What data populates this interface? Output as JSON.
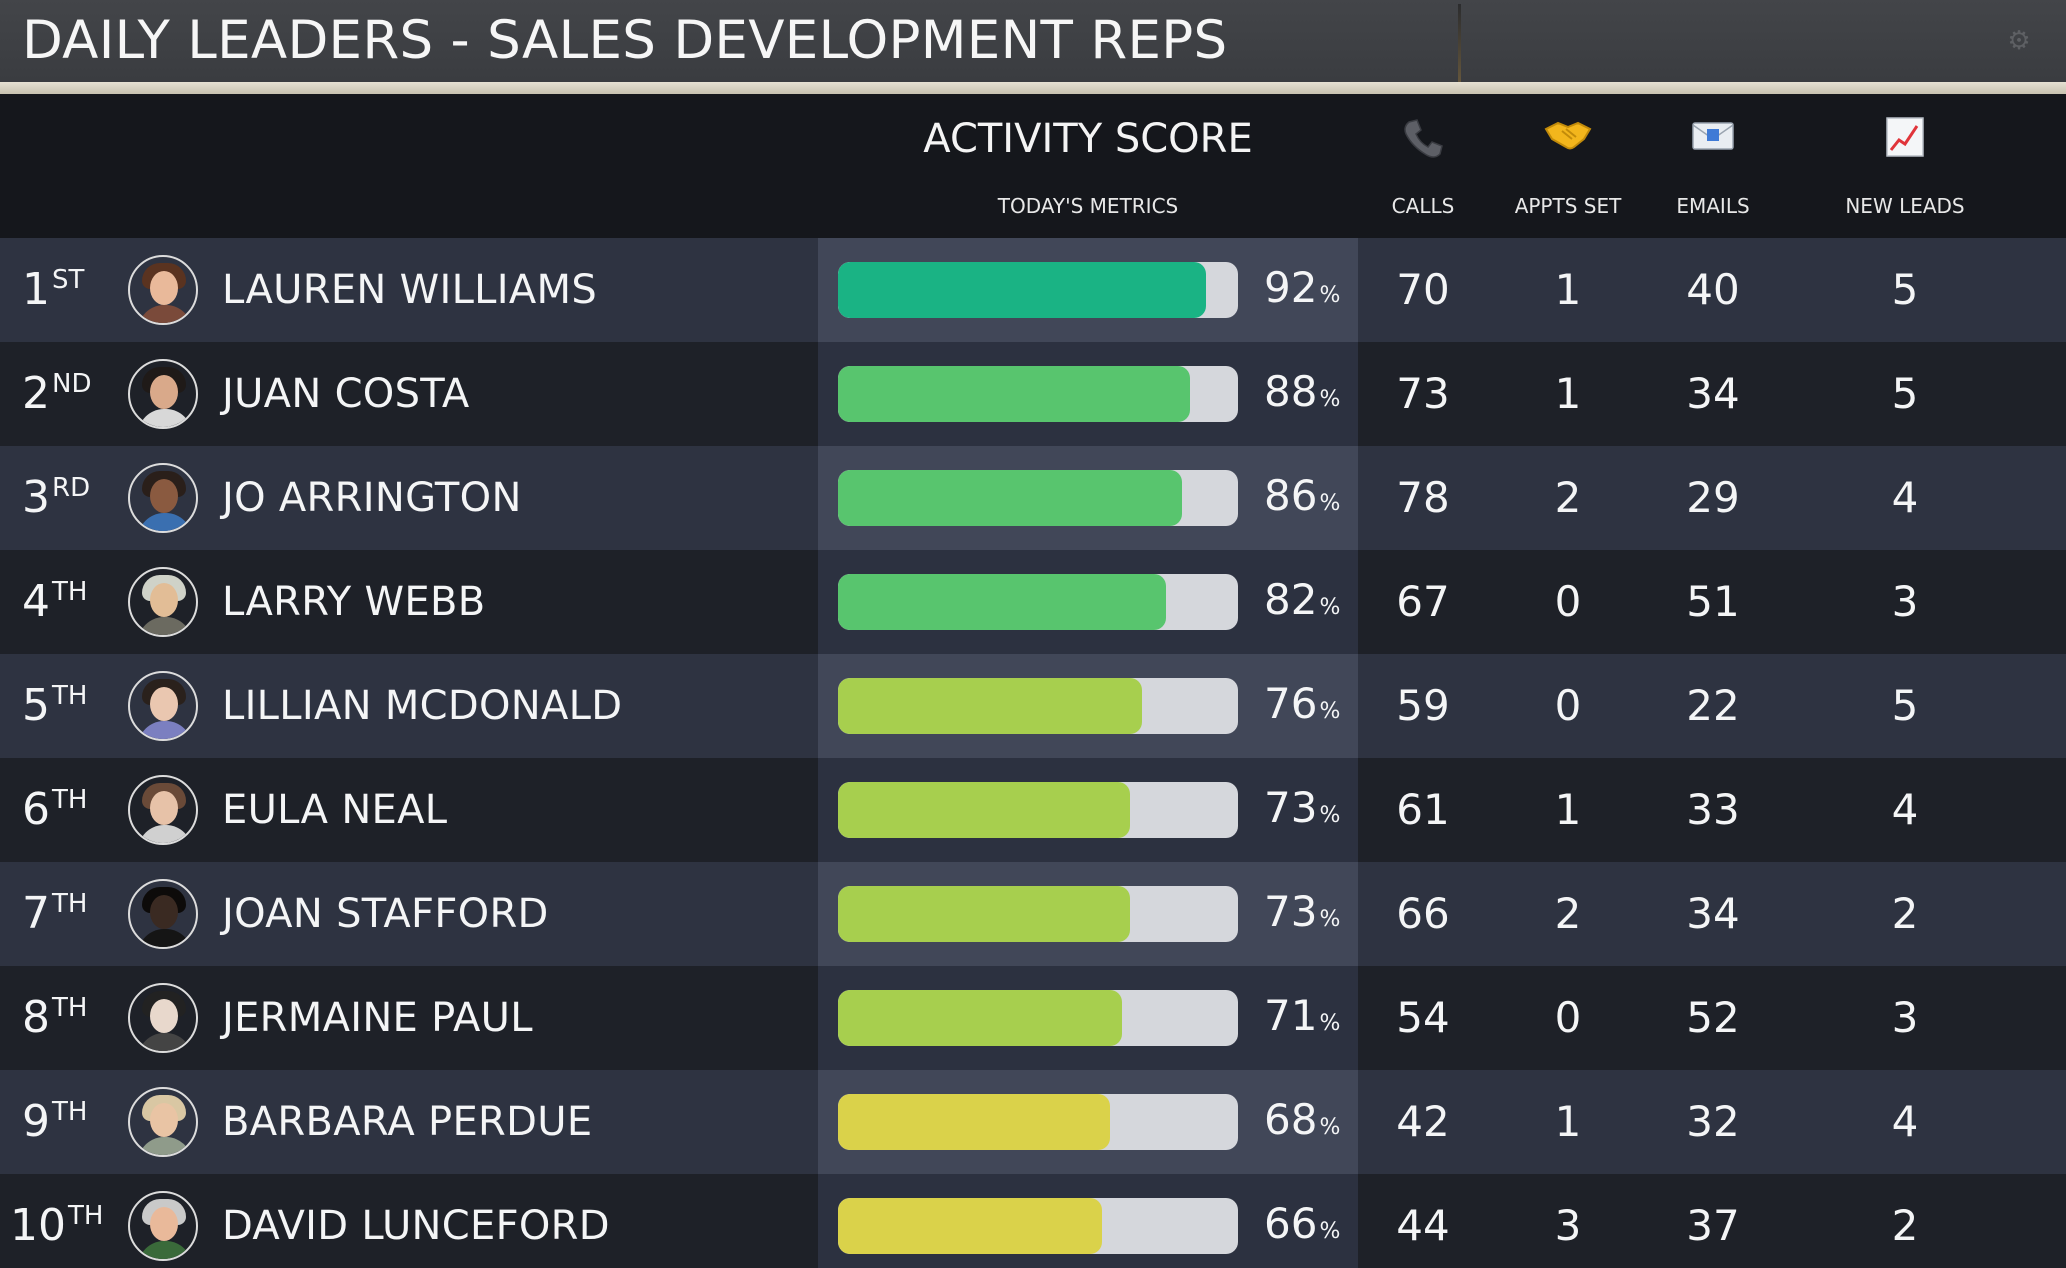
{
  "title": "DAILY LEADERS - SALES DEVELOPMENT REPS",
  "icons": {
    "settings": "gear-icon",
    "calls": "phone-icon",
    "appts": "handshake-icon",
    "emails": "email-icon",
    "leads": "chart-up-icon"
  },
  "header": {
    "activity_score": "ACTIVITY SCORE",
    "todays_metrics": "TODAY'S METRICS",
    "calls": "CALLS",
    "appts_set": "APPTS SET",
    "emails": "EMAILS",
    "new_leads": "NEW LEADS"
  },
  "colors": {
    "bar_track": "#d5d7dc",
    "teal": "#1ab384",
    "green": "#58c56e",
    "lime": "#a7cf4e",
    "yellow": "#dad24a"
  },
  "rows": [
    {
      "rank": "1",
      "suffix": "ST",
      "name": "LAUREN WILLIAMS",
      "score": 92,
      "score_label": "92",
      "calls": "70",
      "appts": "1",
      "emails": "40",
      "leads": "5",
      "bar_color": "#1ab384"
    },
    {
      "rank": "2",
      "suffix": "ND",
      "name": "JUAN COSTA",
      "score": 88,
      "score_label": "88",
      "calls": "73",
      "appts": "1",
      "emails": "34",
      "leads": "5",
      "bar_color": "#58c56e"
    },
    {
      "rank": "3",
      "suffix": "RD",
      "name": "JO ARRINGTON",
      "score": 86,
      "score_label": "86",
      "calls": "78",
      "appts": "2",
      "emails": "29",
      "leads": "4",
      "bar_color": "#58c56e"
    },
    {
      "rank": "4",
      "suffix": "TH",
      "name": "LARRY WEBB",
      "score": 82,
      "score_label": "82",
      "calls": "67",
      "appts": "0",
      "emails": "51",
      "leads": "3",
      "bar_color": "#58c56e"
    },
    {
      "rank": "5",
      "suffix": "TH",
      "name": "LILLIAN MCDONALD",
      "score": 76,
      "score_label": "76",
      "calls": "59",
      "appts": "0",
      "emails": "22",
      "leads": "5",
      "bar_color": "#a7cf4e"
    },
    {
      "rank": "6",
      "suffix": "TH",
      "name": "EULA NEAL",
      "score": 73,
      "score_label": "73",
      "calls": "61",
      "appts": "1",
      "emails": "33",
      "leads": "4",
      "bar_color": "#a7cf4e"
    },
    {
      "rank": "7",
      "suffix": "TH",
      "name": "JOAN STAFFORD",
      "score": 73,
      "score_label": "73",
      "calls": "66",
      "appts": "2",
      "emails": "34",
      "leads": "2",
      "bar_color": "#a7cf4e"
    },
    {
      "rank": "8",
      "suffix": "TH",
      "name": "JERMAINE PAUL",
      "score": 71,
      "score_label": "71",
      "calls": "54",
      "appts": "0",
      "emails": "52",
      "leads": "3",
      "bar_color": "#a7cf4e"
    },
    {
      "rank": "9",
      "suffix": "TH",
      "name": "BARBARA PERDUE",
      "score": 68,
      "score_label": "68",
      "calls": "42",
      "appts": "1",
      "emails": "32",
      "leads": "4",
      "bar_color": "#dad24a"
    },
    {
      "rank": "10",
      "suffix": "TH",
      "name": "DAVID LUNCEFORD",
      "score": 66,
      "score_label": "66",
      "calls": "44",
      "appts": "3",
      "emails": "37",
      "leads": "2",
      "bar_color": "#dad24a"
    }
  ],
  "pct_symbol": "%"
}
